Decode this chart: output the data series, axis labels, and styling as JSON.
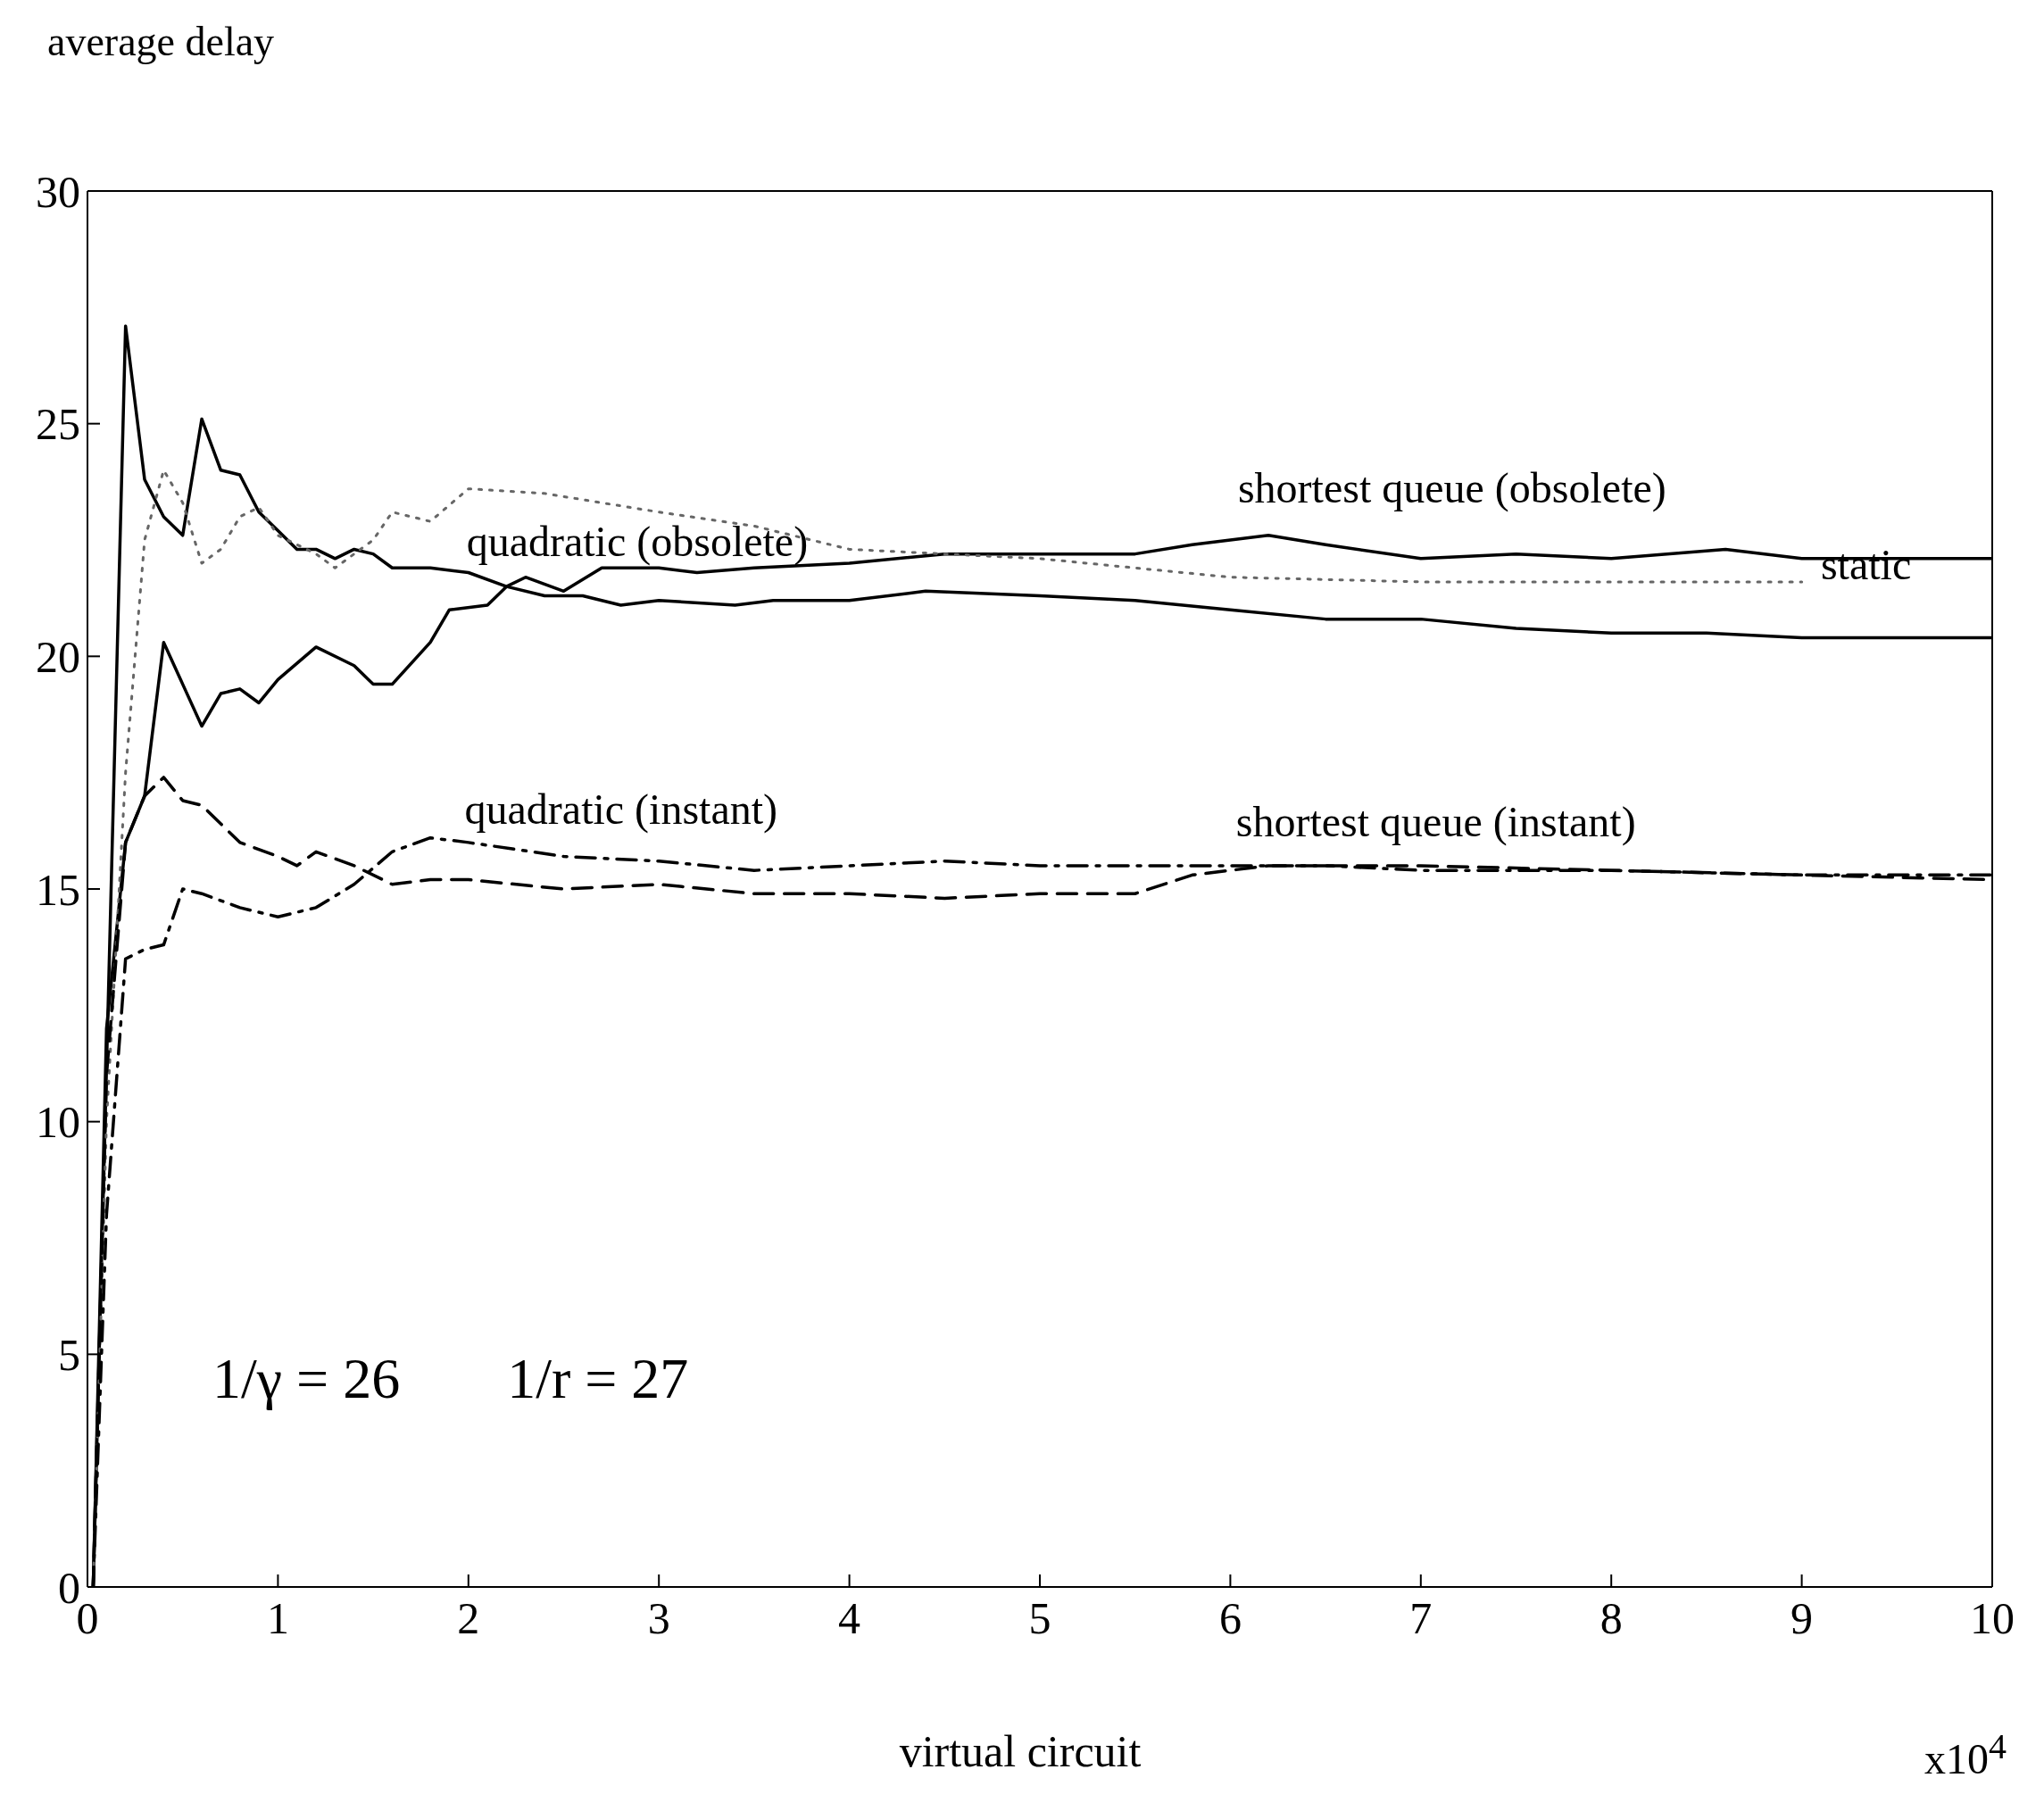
{
  "chart_data": {
    "type": "line",
    "ylabel": "average delay",
    "xlabel": "virtual circuit",
    "xlim": [
      0,
      10
    ],
    "xticks": [
      0,
      1,
      2,
      3,
      4,
      5,
      6,
      7,
      8,
      9,
      10
    ],
    "ylim": [
      0,
      30
    ],
    "yticks": [
      0,
      5,
      10,
      15,
      20,
      25,
      30
    ],
    "grid": false,
    "legend": false,
    "marker": "none",
    "annotations": [
      "1/γ = 26",
      "1/r = 27",
      "x10$^{4}$"
    ],
    "series": [
      {
        "name": "quadratic (obsolete)",
        "color": "#000000",
        "line_style": "solid",
        "x": [
          0.03,
          0.2,
          0.3,
          0.4,
          0.5,
          0.6,
          0.7,
          0.8,
          0.9,
          1.0,
          1.1,
          1.2,
          1.3,
          1.4,
          1.5,
          1.6,
          1.8,
          2.0,
          2.2,
          2.4,
          2.6,
          2.8,
          3.0,
          3.4,
          3.6,
          4.0,
          4.4,
          5.0,
          5.5,
          6.0,
          6.5,
          7.0,
          7.5,
          8.0,
          8.5,
          9.0,
          9.5,
          10
        ],
        "values": [
          0,
          27.1,
          23.8,
          23,
          22.6,
          25.1,
          24,
          23.9,
          23.1,
          22.7,
          22.3,
          22.3,
          22.1,
          22.3,
          22.2,
          21.9,
          21.9,
          21.8,
          21.5,
          21.3,
          21.3,
          21.1,
          21.2,
          21.1,
          21.2,
          21.2,
          21.4,
          21.3,
          21.2,
          21.0,
          20.8,
          20.8,
          20.6,
          20.5,
          20.5,
          20.4,
          20.4,
          20.4
        ]
      },
      {
        "name": "shortest queue (obsolete)",
        "color": "#000000",
        "line_style": "solid",
        "x": [
          0.03,
          0.1,
          0.2,
          0.3,
          0.4,
          0.5,
          0.6,
          0.7,
          0.8,
          0.9,
          1.0,
          1.2,
          1.4,
          1.5,
          1.6,
          1.8,
          1.9,
          2.1,
          2.2,
          2.3,
          2.5,
          2.7,
          3.0,
          3.2,
          3.5,
          4.0,
          4.5,
          5.0,
          5.5,
          5.8,
          6.2,
          6.5,
          7.0,
          7.5,
          8.0,
          8.6,
          9.0,
          10
        ],
        "values": [
          0,
          12,
          16,
          17,
          20.3,
          19.4,
          18.5,
          19.2,
          19.3,
          19.0,
          19.5,
          20.2,
          19.8,
          19.4,
          19.4,
          20.3,
          21.0,
          21.1,
          21.5,
          21.7,
          21.4,
          21.9,
          21.9,
          21.8,
          21.9,
          22.0,
          22.2,
          22.2,
          22.2,
          22.4,
          22.6,
          22.4,
          22.1,
          22.2,
          22.1,
          22.3,
          22.1,
          22.1
        ]
      },
      {
        "name": "static",
        "color": "#666666",
        "line_style": "dotted",
        "x": [
          0.03,
          0.1,
          0.2,
          0.3,
          0.4,
          0.5,
          0.6,
          0.7,
          0.8,
          0.9,
          1.0,
          1.2,
          1.3,
          1.5,
          1.6,
          1.8,
          2.0,
          2.4,
          3.0,
          3.5,
          4.0,
          5.0,
          6.0,
          7.0,
          8.0,
          9.0
        ],
        "values": [
          0,
          10,
          17.5,
          22.5,
          24,
          23.3,
          22,
          22.3,
          23,
          23.2,
          22.6,
          22.2,
          21.9,
          22.5,
          23.1,
          22.9,
          23.6,
          23.5,
          23.1,
          22.8,
          22.3,
          22.1,
          21.7,
          21.6,
          21.6,
          21.6
        ]
      },
      {
        "name": "quadratic (instant)",
        "color": "#000000",
        "line_style": "dashdot",
        "x": [
          0.03,
          0.1,
          0.2,
          0.3,
          0.4,
          0.5,
          0.6,
          0.8,
          1.0,
          1.2,
          1.4,
          1.6,
          1.8,
          2.0,
          2.5,
          3.0,
          3.5,
          4.0,
          4.5,
          5.0,
          5.5,
          6.0,
          6.5,
          7.0,
          8.0,
          9.0,
          10
        ],
        "values": [
          0,
          8,
          13.5,
          13.7,
          13.8,
          15,
          14.9,
          14.6,
          14.4,
          14.6,
          15.1,
          15.8,
          16.1,
          16.0,
          15.7,
          15.6,
          15.4,
          15.5,
          15.6,
          15.5,
          15.5,
          15.5,
          15.5,
          15.4,
          15.4,
          15.3,
          15.3
        ]
      },
      {
        "name": "shortest queue (instant)",
        "color": "#000000",
        "line_style": "dashed",
        "x": [
          0.03,
          0.1,
          0.2,
          0.3,
          0.4,
          0.5,
          0.6,
          0.8,
          1.0,
          1.1,
          1.2,
          1.4,
          1.6,
          1.8,
          2.0,
          2.5,
          3.0,
          3.5,
          4.0,
          4.5,
          5.0,
          5.5,
          5.8,
          6.2,
          7.0,
          8.0,
          9.0,
          10
        ],
        "values": [
          0,
          11,
          16,
          17,
          17.4,
          16.9,
          16.8,
          16.0,
          15.7,
          15.5,
          15.8,
          15.5,
          15.1,
          15.2,
          15.2,
          15.0,
          15.1,
          14.9,
          14.9,
          14.8,
          14.9,
          14.9,
          15.3,
          15.5,
          15.5,
          15.4,
          15.3,
          15.2
        ]
      }
    ]
  }
}
